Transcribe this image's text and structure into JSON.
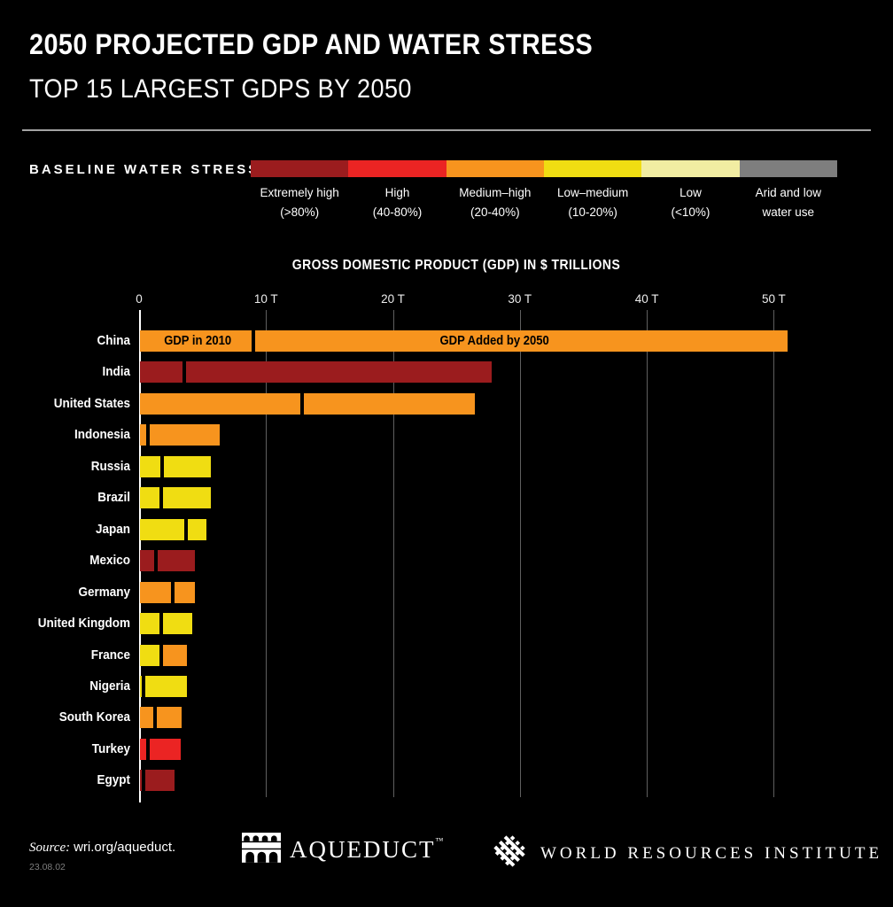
{
  "header": {
    "title": "2050 PROJECTED GDP AND WATER STRESS",
    "subtitle": "TOP 15 LARGEST GDPS BY 2050"
  },
  "legend": {
    "label": "BASELINE WATER STRESS",
    "categories": [
      {
        "key": "extremely-high",
        "name": "Extremely high",
        "range": "(>80%)",
        "color": "#9B1C1E"
      },
      {
        "key": "high",
        "name": "High",
        "range": "(40-80%)",
        "color": "#EB2423"
      },
      {
        "key": "medium-high",
        "name": "Medium–high",
        "range": "(20-40%)",
        "color": "#F7941E"
      },
      {
        "key": "low-medium",
        "name": "Low–medium",
        "range": "(10-20%)",
        "color": "#F0DD12"
      },
      {
        "key": "low",
        "name": "Low",
        "range": "(<10%)",
        "color": "#F1EDA2"
      },
      {
        "key": "arid",
        "name": "Arid and low",
        "range": "water use",
        "color": "#7E7E7E"
      }
    ]
  },
  "chart_data": {
    "type": "bar",
    "title": "GROSS DOMESTIC PRODUCT (GDP) IN $ TRILLIONS",
    "xlabel": "GDP ($ trillions)",
    "xlim": [
      0,
      55
    ],
    "grid": true,
    "x_ticks": [
      {
        "value": 0,
        "label": "0"
      },
      {
        "value": 10,
        "label": "10 T"
      },
      {
        "value": 20,
        "label": "20 T"
      },
      {
        "value": 30,
        "label": "30 T"
      },
      {
        "value": 40,
        "label": "40 T"
      },
      {
        "value": 50,
        "label": "50 T"
      }
    ],
    "segment_labels": {
      "first": "GDP in 2010",
      "second": "GDP Added by 2050"
    },
    "countries": [
      {
        "name": "China",
        "gdp_2010": 9.1,
        "gdp_2050_total": 51.0,
        "stress_2010": "medium-high",
        "stress_added": "medium-high",
        "show_segment_labels": true
      },
      {
        "name": "India",
        "gdp_2010": 3.6,
        "gdp_2050_total": 27.7,
        "stress_2010": "extremely-high",
        "stress_added": "extremely-high"
      },
      {
        "name": "United States",
        "gdp_2010": 12.9,
        "gdp_2050_total": 26.4,
        "stress_2010": "medium-high",
        "stress_added": "medium-high"
      },
      {
        "name": "Indonesia",
        "gdp_2010": 0.8,
        "gdp_2050_total": 6.3,
        "stress_2010": "medium-high",
        "stress_added": "medium-high"
      },
      {
        "name": "Russia",
        "gdp_2010": 1.9,
        "gdp_2050_total": 5.6,
        "stress_2010": "low-medium",
        "stress_added": "low-medium"
      },
      {
        "name": "Brazil",
        "gdp_2010": 1.8,
        "gdp_2050_total": 5.6,
        "stress_2010": "low-medium",
        "stress_added": "low-medium"
      },
      {
        "name": "Japan",
        "gdp_2010": 3.8,
        "gdp_2050_total": 5.2,
        "stress_2010": "low-medium",
        "stress_added": "low-medium"
      },
      {
        "name": "Mexico",
        "gdp_2010": 1.4,
        "gdp_2050_total": 4.3,
        "stress_2010": "extremely-high",
        "stress_added": "extremely-high"
      },
      {
        "name": "Germany",
        "gdp_2010": 2.7,
        "gdp_2050_total": 4.3,
        "stress_2010": "medium-high",
        "stress_added": "medium-high"
      },
      {
        "name": "United Kingdom",
        "gdp_2010": 1.8,
        "gdp_2050_total": 4.1,
        "stress_2010": "low-medium",
        "stress_added": "low-medium"
      },
      {
        "name": "France",
        "gdp_2010": 1.8,
        "gdp_2050_total": 3.7,
        "stress_2010": "low-medium",
        "stress_added": "medium-high"
      },
      {
        "name": "Nigeria",
        "gdp_2010": 0.25,
        "gdp_2050_total": 3.7,
        "stress_2010": "low-medium",
        "stress_added": "low-medium"
      },
      {
        "name": "South Korea",
        "gdp_2010": 1.3,
        "gdp_2050_total": 3.3,
        "stress_2010": "medium-high",
        "stress_added": "medium-high"
      },
      {
        "name": "Turkey",
        "gdp_2010": 0.8,
        "gdp_2050_total": 3.2,
        "stress_2010": "high",
        "stress_added": "high"
      },
      {
        "name": "Egypt",
        "gdp_2010": 0.4,
        "gdp_2050_total": 2.7,
        "stress_2010": "extremely-high",
        "stress_added": "extremely-high"
      }
    ]
  },
  "footer": {
    "source_prefix": "Source:",
    "source_text": "wri.org/aqueduct.",
    "date": "23.08.02",
    "aqueduct_label": "AQUEDUCT",
    "aqueduct_tm": "™",
    "wri_label": "WORLD RESOURCES INSTITUTE"
  }
}
